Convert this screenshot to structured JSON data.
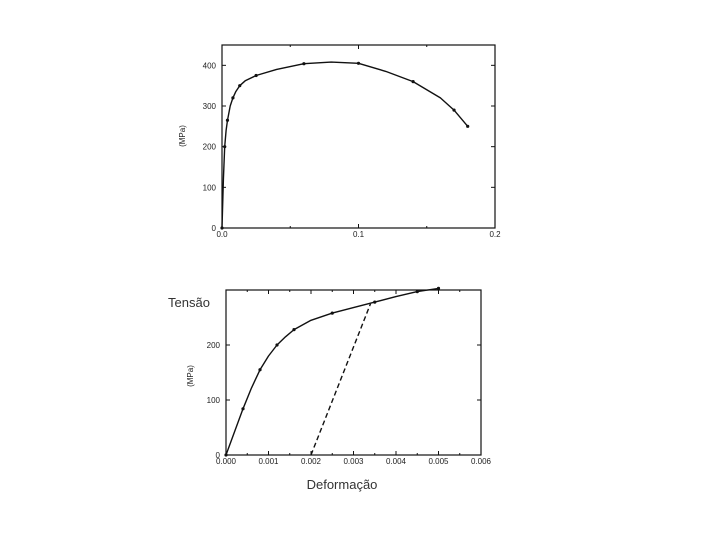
{
  "chart_data": [
    {
      "type": "line",
      "ylabel": "(MPa)",
      "xlim": [
        0,
        0.2
      ],
      "ylim": [
        0,
        450
      ],
      "xticks": [
        "0.0",
        "0.1",
        "0.2"
      ],
      "yticks": [
        "0",
        "100",
        "200",
        "300",
        "400"
      ],
      "grid": false,
      "series": [
        {
          "style": "solid",
          "x": [
            0.0,
            0.001,
            0.002,
            0.003,
            0.004,
            0.006,
            0.008,
            0.01,
            0.013,
            0.017,
            0.025,
            0.04,
            0.06,
            0.08,
            0.1,
            0.12,
            0.14,
            0.16,
            0.17,
            0.18
          ],
          "y": [
            0,
            120,
            200,
            240,
            265,
            300,
            320,
            335,
            350,
            362,
            375,
            390,
            404,
            408,
            405,
            385,
            360,
            320,
            290,
            250
          ]
        }
      ]
    },
    {
      "type": "line",
      "title": "Tensão",
      "xlabel": "Deformação",
      "ylabel": "(MPa)",
      "xlim": [
        0,
        0.006
      ],
      "ylim": [
        0,
        300
      ],
      "xticks": [
        "0.000",
        "0.001",
        "0.002",
        "0.003",
        "0.004",
        "0.005",
        "0.006"
      ],
      "yticks": [
        "0",
        "100",
        "200"
      ],
      "grid": false,
      "series": [
        {
          "style": "solid",
          "x": [
            0.0,
            0.0002,
            0.0004,
            0.0006,
            0.0008,
            0.001,
            0.0012,
            0.0014,
            0.0016,
            0.002,
            0.0025,
            0.003,
            0.0035,
            0.004,
            0.0045,
            0.005
          ],
          "y": [
            0,
            42,
            84,
            122,
            155,
            180,
            200,
            215,
            228,
            245,
            258,
            268,
            278,
            288,
            297,
            303
          ]
        },
        {
          "style": "dashed",
          "x": [
            0.002,
            0.0034
          ],
          "y": [
            0,
            275
          ]
        }
      ]
    }
  ]
}
